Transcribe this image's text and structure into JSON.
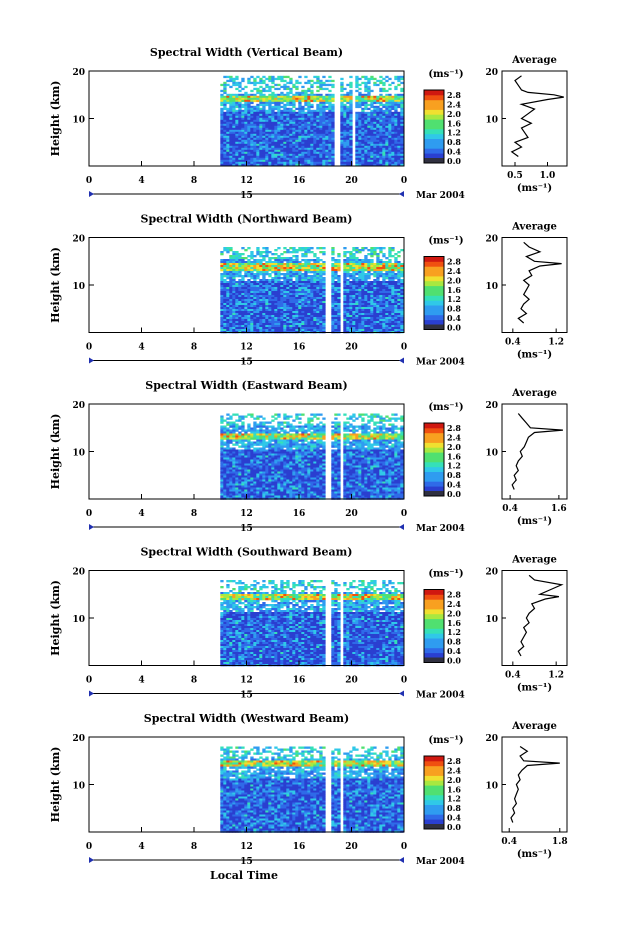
{
  "common": {
    "ylabel": "Height (km)",
    "xticks": [
      "0",
      "4",
      "8",
      "12",
      "16",
      "20",
      "0"
    ],
    "xlim_hours": [
      0,
      24
    ],
    "ylim_km": [
      0,
      20
    ],
    "yticks": [
      "20",
      "10"
    ],
    "day_label": "15",
    "month_label": "Mar 2004",
    "units": "(ms⁻¹)",
    "colorbar_ticks": [
      "2.8",
      "2.4",
      "2.0",
      "1.6",
      "1.2",
      "0.8",
      "0.4",
      "0.0"
    ],
    "avg_title": "Average",
    "avg_yticks": [
      "20",
      "10"
    ],
    "avg_xlabel": "(ms⁻¹)",
    "xlabel": "Local Time",
    "colors": {
      "low": "#2040c8",
      "high": "#e02010",
      "band": "#f0e020"
    }
  },
  "chart_data": [
    {
      "type": "heatmap",
      "title": "Spectral Width (Vertical Beam)",
      "data_start_hour": 10,
      "gaps_hours": [
        [
          18.6,
          19.0
        ],
        [
          20.0,
          20.2
        ]
      ],
      "top_km": 19,
      "band_km": 14.5,
      "average": {
        "xticks": [
          "0.5",
          "1.0"
        ],
        "xlim": [
          0.3,
          1.3
        ],
        "profile_height_km": [
          2,
          3,
          4,
          5,
          6,
          7,
          8,
          9,
          10,
          11,
          12,
          13,
          14,
          14.5,
          15,
          15.5,
          16,
          17,
          18,
          19
        ],
        "profile_value": [
          0.55,
          0.45,
          0.6,
          0.5,
          0.7,
          0.65,
          0.6,
          0.75,
          0.6,
          0.7,
          0.8,
          0.6,
          1.0,
          1.25,
          1.1,
          0.7,
          0.6,
          0.55,
          0.5,
          0.6
        ]
      }
    },
    {
      "type": "heatmap",
      "title": "Spectral Width (Northward Beam)",
      "data_start_hour": 10,
      "gaps_hours": [
        [
          17.9,
          18.3
        ],
        [
          19.0,
          19.2
        ]
      ],
      "top_km": 18,
      "band_km": 14.0,
      "average": {
        "xticks": [
          "0.4",
          "1.2"
        ],
        "xlim": [
          0.2,
          1.4
        ],
        "profile_height_km": [
          2,
          3,
          4,
          5,
          6,
          7,
          8,
          9,
          10,
          11,
          12,
          13,
          14,
          14.5,
          15,
          16,
          17,
          18,
          19
        ],
        "profile_value": [
          0.6,
          0.5,
          0.65,
          0.55,
          0.6,
          0.7,
          0.6,
          0.65,
          0.7,
          0.6,
          0.75,
          0.7,
          0.9,
          1.3,
          0.8,
          0.65,
          0.9,
          0.7,
          0.6
        ]
      }
    },
    {
      "type": "heatmap",
      "title": "Spectral Width (Eastward Beam)",
      "data_start_hour": 10,
      "gaps_hours": [
        [
          17.9,
          18.3
        ],
        [
          19.0,
          19.2
        ]
      ],
      "top_km": 18,
      "band_km": 13.5,
      "average": {
        "xticks": [
          "0.4",
          "1.6"
        ],
        "xlim": [
          0.2,
          1.8
        ],
        "profile_height_km": [
          2,
          3,
          4,
          5,
          6,
          7,
          8,
          9,
          10,
          11,
          12,
          13,
          14,
          14.5,
          15,
          16,
          17,
          18
        ],
        "profile_value": [
          0.5,
          0.45,
          0.55,
          0.5,
          0.6,
          0.55,
          0.6,
          0.7,
          0.65,
          0.75,
          0.8,
          0.85,
          1.0,
          1.7,
          0.9,
          0.8,
          0.7,
          0.6
        ]
      }
    },
    {
      "type": "heatmap",
      "title": "Spectral Width (Southward Beam)",
      "data_start_hour": 10,
      "gaps_hours": [
        [
          17.9,
          18.3
        ],
        [
          19.0,
          19.2
        ]
      ],
      "top_km": 18,
      "band_km": 14.5,
      "average": {
        "xticks": [
          "0.4",
          "1.2"
        ],
        "xlim": [
          0.2,
          1.4
        ],
        "profile_height_km": [
          2,
          3,
          4,
          5,
          6,
          7,
          8,
          9,
          10,
          11,
          12,
          13,
          14,
          14.5,
          15,
          16,
          17,
          18,
          19
        ],
        "profile_value": [
          0.55,
          0.5,
          0.6,
          0.55,
          0.6,
          0.65,
          0.6,
          0.7,
          0.65,
          0.7,
          0.8,
          0.75,
          1.0,
          1.25,
          0.9,
          1.1,
          1.3,
          0.8,
          0.7
        ]
      }
    },
    {
      "type": "heatmap",
      "title": "Spectral Width (Westward Beam)",
      "data_start_hour": 10,
      "gaps_hours": [
        [
          17.9,
          18.3
        ],
        [
          19.0,
          19.2
        ]
      ],
      "top_km": 18,
      "band_km": 14.5,
      "average": {
        "xticks": [
          "0.4",
          "1.8"
        ],
        "xlim": [
          0.2,
          2.0
        ],
        "profile_height_km": [
          2,
          3,
          4,
          5,
          6,
          7,
          8,
          9,
          10,
          11,
          12,
          13,
          14,
          14.5,
          15,
          16,
          17,
          18
        ],
        "profile_value": [
          0.5,
          0.45,
          0.55,
          0.5,
          0.6,
          0.55,
          0.6,
          0.65,
          0.6,
          0.7,
          0.65,
          0.75,
          0.9,
          1.8,
          0.8,
          0.7,
          0.9,
          0.7
        ]
      }
    }
  ]
}
